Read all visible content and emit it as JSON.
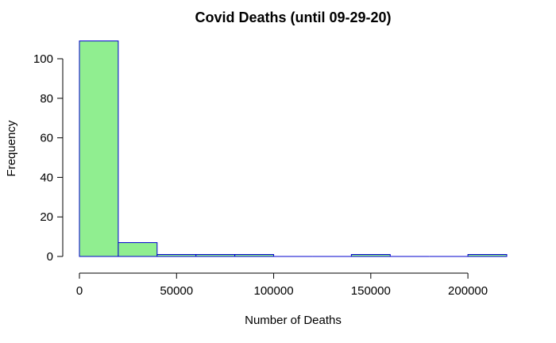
{
  "chart_data": {
    "type": "bar",
    "title": "Covid Deaths (until 09-29-20)",
    "xlabel": "Number of Deaths",
    "ylabel": "Frequency",
    "bins": [
      {
        "start": 0,
        "end": 20000,
        "count": 109,
        "fill": "#90ee90"
      },
      {
        "start": 20000,
        "end": 40000,
        "count": 7,
        "fill": "#90ee90"
      },
      {
        "start": 40000,
        "end": 60000,
        "count": 1,
        "fill": "#90ee90"
      },
      {
        "start": 60000,
        "end": 80000,
        "count": 1,
        "fill": "#90ee90"
      },
      {
        "start": 80000,
        "end": 100000,
        "count": 1,
        "fill": "#90ee90"
      },
      {
        "start": 100000,
        "end": 120000,
        "count": 0,
        "fill": "#90ee90"
      },
      {
        "start": 120000,
        "end": 140000,
        "count": 0,
        "fill": "#90ee90"
      },
      {
        "start": 140000,
        "end": 160000,
        "count": 1,
        "fill": "#90ee90"
      },
      {
        "start": 160000,
        "end": 180000,
        "count": 0,
        "fill": "#90ee90"
      },
      {
        "start": 180000,
        "end": 200000,
        "count": 0,
        "fill": "#90ee90"
      },
      {
        "start": 200000,
        "end": 220000,
        "count": 1,
        "fill": "#90ee90"
      }
    ],
    "xlim": [
      0,
      220000
    ],
    "ylim": [
      0,
      110
    ],
    "xticks": [
      0,
      50000,
      100000,
      150000,
      200000
    ],
    "xtick_labels": [
      "0",
      "50000",
      "100000",
      "150000",
      "200000"
    ],
    "yticks": [
      0,
      20,
      40,
      60,
      80,
      100
    ],
    "ytick_labels": [
      "0",
      "20",
      "40",
      "60",
      "80",
      "100"
    ],
    "bar_border_color": "#0000cd",
    "grid": false,
    "legend": "none"
  }
}
